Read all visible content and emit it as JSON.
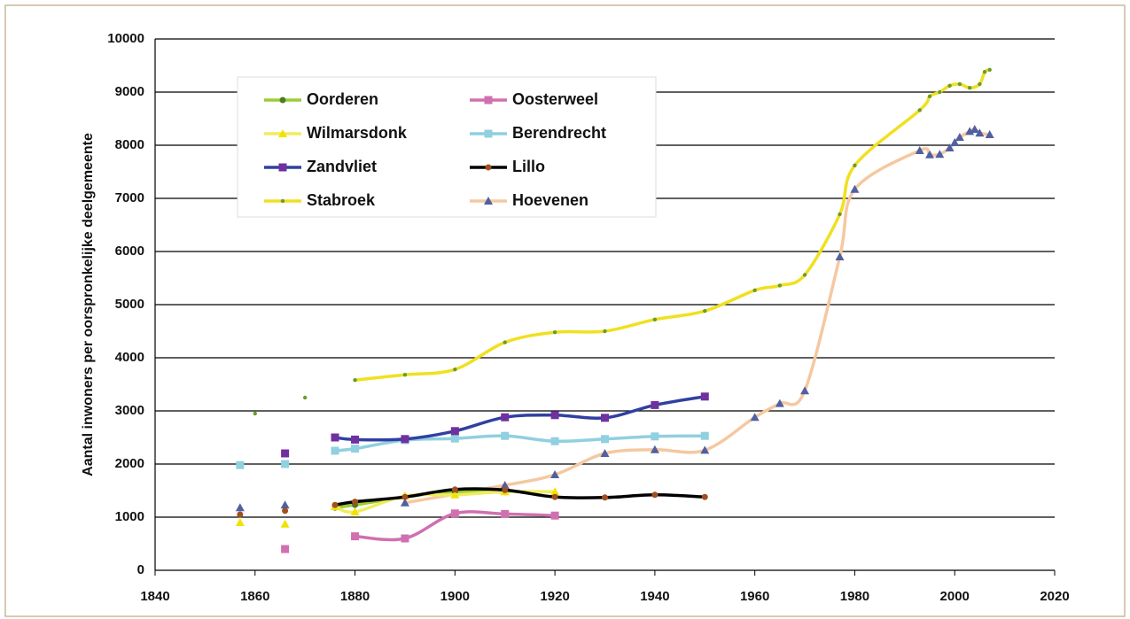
{
  "chart_data": {
    "type": "line",
    "ylabel": "Aantal inwoners per oorspronkelijke deelgemeente",
    "xlim": [
      1840,
      2020
    ],
    "xticks": [
      1840,
      1860,
      1880,
      1900,
      1920,
      1940,
      1960,
      1980,
      2000,
      2020
    ],
    "ylim": [
      0,
      10000
    ],
    "yticks": [
      0,
      1000,
      2000,
      3000,
      4000,
      5000,
      6000,
      7000,
      8000,
      9000,
      10000
    ],
    "grid": true,
    "legend": "upper left",
    "series": [
      {
        "name": "Oorderen",
        "color": "#9acd32",
        "marker_color": "#4e7a2a",
        "marker": "circle",
        "x": [
          1876,
          1880,
          1890,
          1900,
          1910
        ],
        "values": [
          1180,
          1230,
          1380,
          1480,
          1470
        ]
      },
      {
        "name": "Oosterweel",
        "color": "#d070b0",
        "marker_color": "#d070b0",
        "marker": "square",
        "x": [
          1866,
          null,
          1880,
          1890,
          1900,
          1910,
          1920
        ],
        "values": [
          400,
          null,
          640,
          600,
          1070,
          1060,
          1030
        ]
      },
      {
        "name": "Wilmarsdonk",
        "color": "#f0ec60",
        "marker_color": "#f2e200",
        "marker": "triangle",
        "x": [
          1857,
          null,
          1866,
          null,
          1876,
          1880,
          1890,
          1900,
          1910,
          1920
        ],
        "values": [
          900,
          null,
          870,
          null,
          1200,
          1100,
          1400,
          1420,
          1480,
          1480
        ]
      },
      {
        "name": "Berendrecht",
        "color": "#90d0e0",
        "marker_color": "#90d0e0",
        "marker": "square",
        "x": [
          1857,
          null,
          1866,
          null,
          1876,
          1880,
          1890,
          1900,
          1910,
          1920,
          1930,
          1940,
          1950
        ],
        "values": [
          1980,
          null,
          2000,
          null,
          2250,
          2290,
          2450,
          2480,
          2530,
          2430,
          2470,
          2520,
          2530
        ]
      },
      {
        "name": "Zandvliet",
        "color": "#3040a0",
        "marker_color": "#7030a0",
        "marker": "square",
        "x": [
          1866,
          null,
          1876,
          1880,
          1890,
          1900,
          1910,
          1920,
          1930,
          1940,
          1950
        ],
        "values": [
          2200,
          null,
          2500,
          2460,
          2470,
          2620,
          2880,
          2920,
          2870,
          3110,
          3270
        ]
      },
      {
        "name": "Lillo",
        "color": "#000000",
        "marker_color": "#a05020",
        "marker": "circle",
        "x": [
          1857,
          null,
          1866,
          null,
          1876,
          1880,
          1890,
          1900,
          1910,
          1920,
          1930,
          1940,
          1950
        ],
        "values": [
          1050,
          null,
          1120,
          null,
          1230,
          1290,
          1380,
          1520,
          1510,
          1380,
          1370,
          1420,
          1380
        ]
      },
      {
        "name": "Stabroek",
        "color": "#f0e020",
        "marker_color": "#6a9a30",
        "marker": "dot",
        "x": [
          1860,
          null,
          1870,
          null,
          1880,
          1890,
          1900,
          1910,
          1920,
          1930,
          1940,
          1950,
          1960,
          1965,
          1970,
          1977,
          1980,
          1993,
          1995,
          1997,
          1999,
          2001,
          2003,
          2005,
          2006,
          2007
        ],
        "values": [
          2950,
          null,
          3250,
          null,
          3580,
          3680,
          3780,
          4290,
          4480,
          4500,
          4720,
          4880,
          5270,
          5360,
          5560,
          6700,
          7620,
          8660,
          8920,
          9000,
          9120,
          9150,
          9080,
          9150,
          9380,
          9420
        ]
      },
      {
        "name": "Hoevenen",
        "color": "#f5c8a0",
        "marker_color": "#5060a0",
        "marker": "triangle",
        "x": [
          1857,
          null,
          1866,
          null,
          1890,
          1910,
          1920,
          1930,
          1940,
          1950,
          1960,
          1965,
          1970,
          1977,
          1980,
          1993,
          1995,
          1997,
          1999,
          2000,
          2001,
          2003,
          2004,
          2005,
          2007
        ],
        "values": [
          1180,
          null,
          1230,
          null,
          1270,
          1600,
          1800,
          2200,
          2270,
          2260,
          2880,
          3140,
          3380,
          5900,
          7170,
          7900,
          7820,
          7830,
          7950,
          8050,
          8150,
          8260,
          8300,
          8230,
          8200
        ]
      }
    ]
  }
}
